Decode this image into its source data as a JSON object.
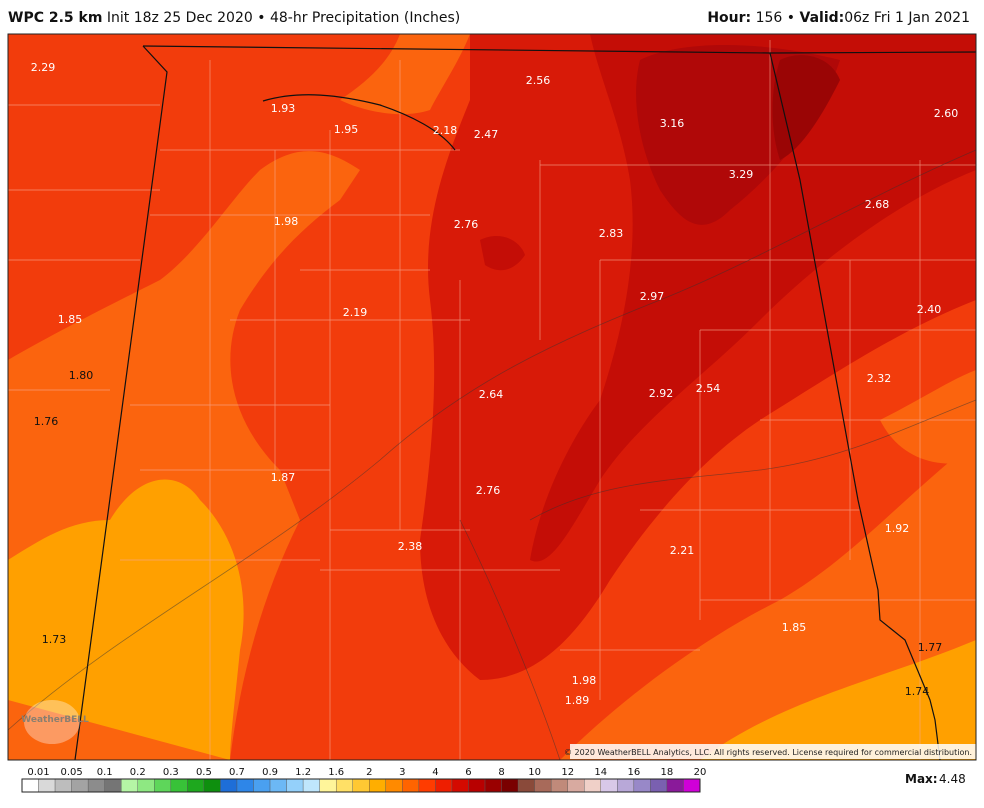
{
  "header": {
    "model": "WPC 2.5 km",
    "init": "Init 18z 25 Dec 2020",
    "separator": "•",
    "product": "48-hr Precipitation (Inches)",
    "hour_label": "Hour:",
    "hour": "156",
    "valid_label": "Valid:",
    "valid": "06z Fri 1 Jan 2021"
  },
  "labels": [
    "2.29",
    "1.93",
    "1.95",
    "2.18",
    "2.47",
    "2.56",
    "3.16",
    "3.29",
    "2.60",
    "2.68",
    "1.98",
    "2.76",
    "2.83",
    "2.97",
    "2.40",
    "1.85",
    "2.19",
    "1.80",
    "2.32",
    "1.76",
    "2.64",
    "2.92",
    "2.54",
    "1.87",
    "2.76",
    "1.92",
    "2.38",
    "2.21",
    "1.73",
    "1.85",
    "1.77",
    "1.98",
    "1.89",
    "1.74"
  ],
  "copyright": "© 2020 WeatherBELL Analytics, LLC. All rights reserved. License required for commercial distribution.",
  "logo": "WeatherBELL",
  "colorbar": {
    "ticks": [
      "0.01",
      "0.05",
      "0.1",
      "0.2",
      "0.3",
      "0.5",
      "0.7",
      "0.9",
      "1.2",
      "1.6",
      "2",
      "3",
      "4",
      "6",
      "8",
      "10",
      "12",
      "14",
      "16",
      "18",
      "20"
    ],
    "colors": [
      "#ffffff",
      "#d9d9d9",
      "#bdbdbd",
      "#a3a3a3",
      "#8c8c8c",
      "#757575",
      "#b5f5a5",
      "#8ee882",
      "#5ed65a",
      "#38c238",
      "#1ea81e",
      "#0e8f0e",
      "#1e6ed8",
      "#2e86e8",
      "#4aa0f0",
      "#6cb8f5",
      "#94d0fa",
      "#bfe6fc",
      "#fff59a",
      "#ffe066",
      "#ffc833",
      "#ffae00",
      "#ff8a00",
      "#ff6400",
      "#ff3c00",
      "#ee1e00",
      "#d40a00",
      "#b80000",
      "#9a0000",
      "#7a0000",
      "#8a4a3a",
      "#a86a5a",
      "#c08a7a",
      "#d8aaa0",
      "#f0d0c8",
      "#d8c8e8",
      "#b8a8d8",
      "#9888c8",
      "#7a60b0",
      "#8a1a9a",
      "#d000d8"
    ]
  },
  "max_label": "Max:",
  "max": "4.48"
}
